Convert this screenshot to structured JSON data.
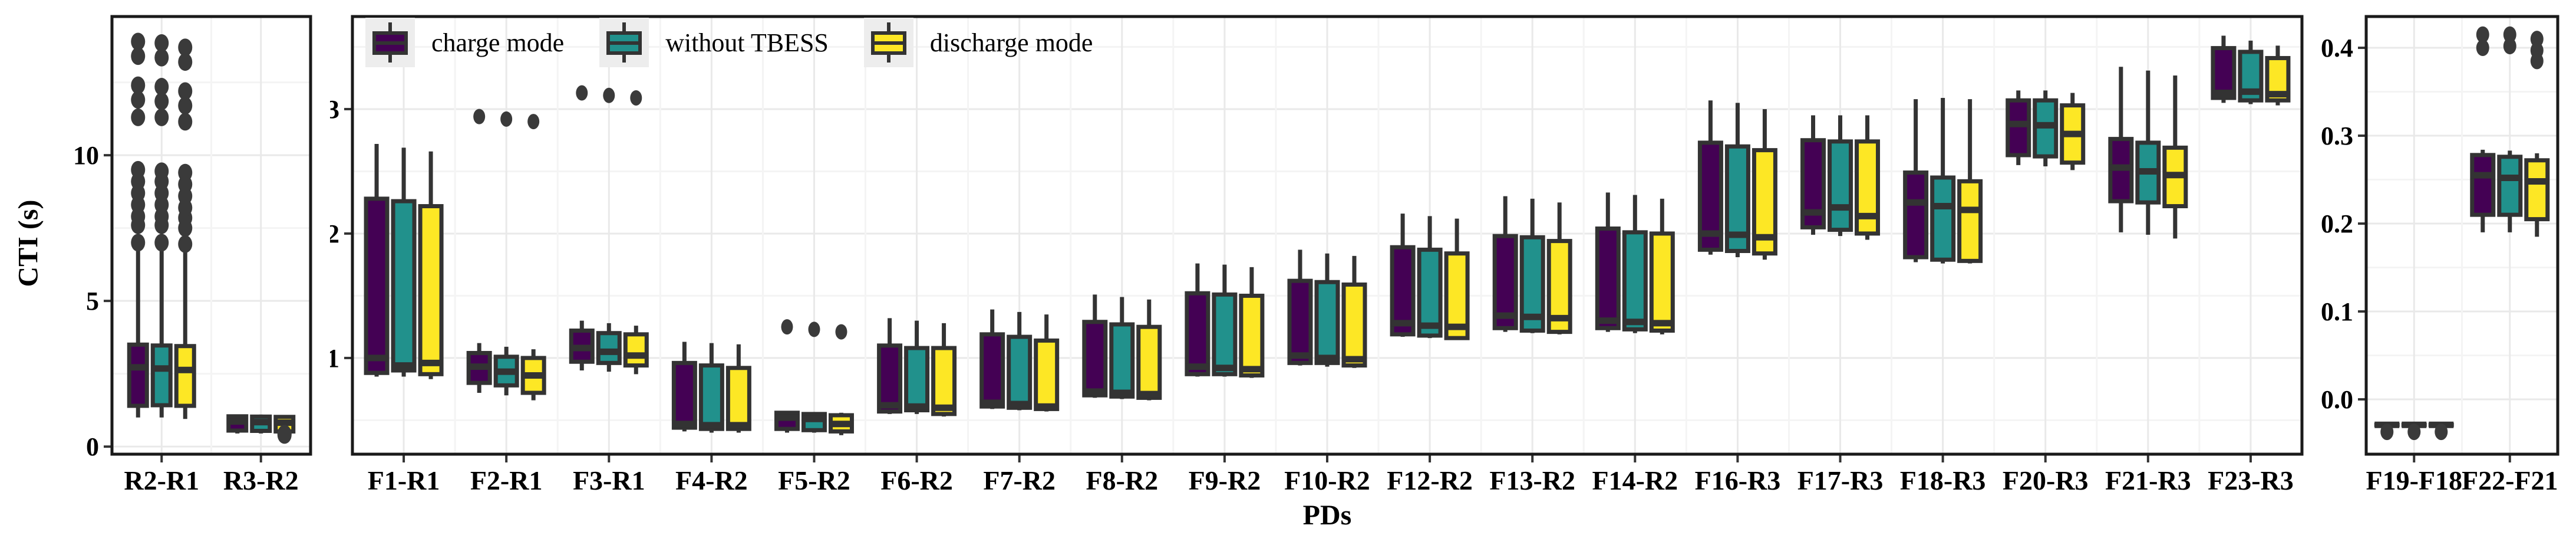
{
  "axis": {
    "x_label": "PDs",
    "y_label": "CTI (s)"
  },
  "legend": {
    "items": [
      {
        "label": "charge mode",
        "color": "#440154"
      },
      {
        "label": "without TBESS",
        "color": "#21918c"
      },
      {
        "label": "discharge mode",
        "color": "#fde725"
      }
    ]
  },
  "colors": {
    "box_outline": "#333333",
    "outlier": "#3a3a3a",
    "grid_major": "#e9e9e9",
    "grid_minor": "#f4f4f4",
    "panel_border": "#1a1a1a",
    "tick_mark": "#333333",
    "text": "#000000",
    "legend_key_bg": "#ededed",
    "background": "#ffffff"
  },
  "chart_data": [
    {
      "type": "boxplot",
      "panel": "left",
      "ylabel": "CTI (s)",
      "ylim": [
        -0.26,
        14.76
      ],
      "yticks": [
        0,
        5,
        10
      ],
      "ytick_labels": [
        "0",
        "5",
        "10"
      ],
      "yminor": [
        2.5,
        7.5,
        12.5
      ],
      "categories": [
        "R2-R1",
        "R3-R2"
      ],
      "series": [
        {
          "name": "charge mode",
          "color": "#440154",
          "boxes": [
            {
              "lo": 1.0,
              "q1": 1.4,
              "med": 2.72,
              "q3": 3.5,
              "hi": 6.9,
              "outliers": [
                7.0,
                7.6,
                7.9,
                8.3,
                8.7,
                9.1,
                9.5,
                11.3,
                11.9,
                12.4,
                13.4,
                13.9
              ]
            },
            {
              "lo": 0.45,
              "q1": 0.55,
              "med": 0.86,
              "q3": 1.04,
              "hi": 1.1,
              "outliers": []
            }
          ]
        },
        {
          "name": "without TBESS",
          "color": "#21918c",
          "boxes": [
            {
              "lo": 1.0,
              "q1": 1.42,
              "med": 2.68,
              "q3": 3.47,
              "hi": 6.88,
              "outliers": [
                7.0,
                7.6,
                7.9,
                8.3,
                8.7,
                9.1,
                9.45,
                11.3,
                11.85,
                12.35,
                13.35,
                13.85
              ]
            },
            {
              "lo": 0.45,
              "q1": 0.54,
              "med": 0.84,
              "q3": 1.03,
              "hi": 1.1,
              "outliers": []
            }
          ]
        },
        {
          "name": "discharge mode",
          "color": "#fde725",
          "boxes": [
            {
              "lo": 0.95,
              "q1": 1.4,
              "med": 2.63,
              "q3": 3.45,
              "hi": 6.85,
              "outliers": [
                6.95,
                7.5,
                7.85,
                8.2,
                8.6,
                9.0,
                9.4,
                11.15,
                11.7,
                12.2,
                13.2,
                13.7
              ]
            },
            {
              "lo": 0.43,
              "q1": 0.52,
              "med": 0.82,
              "q3": 1.02,
              "hi": 1.08,
              "outliers": [
                0.44,
                0.4
              ]
            }
          ]
        }
      ]
    },
    {
      "type": "boxplot",
      "panel": "middle",
      "ylim": [
        0.227,
        3.744
      ],
      "yticks": [
        1,
        2,
        3
      ],
      "ytick_labels": [
        "1",
        "2",
        "3"
      ],
      "yminor": [
        0.5,
        1.5,
        2.5,
        3.5
      ],
      "categories": [
        "F1-R1",
        "F2-R1",
        "F3-R1",
        "F4-R2",
        "F5-R2",
        "F6-R2",
        "F7-R2",
        "F8-R2",
        "F9-R2",
        "F10-R2",
        "F12-R2",
        "F13-R2",
        "F14-R2",
        "F16-R3",
        "F17-R3",
        "F18-R3",
        "F20-R3",
        "F21-R3",
        "F23-R3"
      ],
      "series": [
        {
          "name": "charge mode",
          "color": "#440154",
          "boxes": [
            {
              "lo": 0.85,
              "q1": 0.88,
              "med": 1.0,
              "q3": 2.28,
              "hi": 2.72,
              "outliers": []
            },
            {
              "lo": 0.72,
              "q1": 0.8,
              "med": 0.93,
              "q3": 1.04,
              "hi": 1.12,
              "outliers": [
                2.94
              ]
            },
            {
              "lo": 0.9,
              "q1": 0.97,
              "med": 1.08,
              "q3": 1.22,
              "hi": 1.3,
              "outliers": [
                3.13
              ]
            },
            {
              "lo": 0.41,
              "q1": 0.44,
              "med": 0.47,
              "q3": 0.96,
              "hi": 1.13,
              "outliers": []
            },
            {
              "lo": 0.4,
              "q1": 0.43,
              "med": 0.52,
              "q3": 0.56,
              "hi": 0.57,
              "outliers": [
                1.25
              ]
            },
            {
              "lo": 0.55,
              "q1": 0.57,
              "med": 0.62,
              "q3": 1.1,
              "hi": 1.32,
              "outliers": []
            },
            {
              "lo": 0.59,
              "q1": 0.61,
              "med": 0.64,
              "q3": 1.19,
              "hi": 1.39,
              "outliers": []
            },
            {
              "lo": 0.68,
              "q1": 0.7,
              "med": 0.73,
              "q3": 1.29,
              "hi": 1.51,
              "outliers": []
            },
            {
              "lo": 0.85,
              "q1": 0.87,
              "med": 0.93,
              "q3": 1.52,
              "hi": 1.76,
              "outliers": []
            },
            {
              "lo": 0.94,
              "q1": 0.96,
              "med": 1.02,
              "q3": 1.62,
              "hi": 1.87,
              "outliers": []
            },
            {
              "lo": 1.17,
              "q1": 1.19,
              "med": 1.28,
              "q3": 1.89,
              "hi": 2.16,
              "outliers": []
            },
            {
              "lo": 1.21,
              "q1": 1.24,
              "med": 1.34,
              "q3": 1.98,
              "hi": 2.3,
              "outliers": []
            },
            {
              "lo": 1.21,
              "q1": 1.24,
              "med": 1.3,
              "q3": 2.04,
              "hi": 2.33,
              "outliers": []
            },
            {
              "lo": 1.83,
              "q1": 1.87,
              "med": 2.0,
              "q3": 2.73,
              "hi": 3.07,
              "outliers": []
            },
            {
              "lo": 1.99,
              "q1": 2.05,
              "med": 2.17,
              "q3": 2.75,
              "hi": 2.95,
              "outliers": []
            },
            {
              "lo": 1.77,
              "q1": 1.81,
              "med": 2.25,
              "q3": 2.49,
              "hi": 3.08,
              "outliers": []
            },
            {
              "lo": 2.55,
              "q1": 2.63,
              "med": 2.88,
              "q3": 3.07,
              "hi": 3.15,
              "outliers": []
            },
            {
              "lo": 2.01,
              "q1": 2.26,
              "med": 2.53,
              "q3": 2.76,
              "hi": 3.34,
              "outliers": []
            },
            {
              "lo": 3.05,
              "q1": 3.09,
              "med": 3.13,
              "q3": 3.49,
              "hi": 3.59,
              "outliers": []
            }
          ]
        },
        {
          "name": "without TBESS",
          "color": "#21918c",
          "boxes": [
            {
              "lo": 0.85,
              "q1": 0.9,
              "med": 0.94,
              "q3": 2.26,
              "hi": 2.69,
              "outliers": []
            },
            {
              "lo": 0.7,
              "q1": 0.78,
              "med": 0.89,
              "q3": 1.01,
              "hi": 1.09,
              "outliers": [
                2.92
              ]
            },
            {
              "lo": 0.89,
              "q1": 0.96,
              "med": 1.05,
              "q3": 1.2,
              "hi": 1.28,
              "outliers": [
                3.11
              ]
            },
            {
              "lo": 0.4,
              "q1": 0.43,
              "med": 0.46,
              "q3": 0.94,
              "hi": 1.12,
              "outliers": []
            },
            {
              "lo": 0.4,
              "q1": 0.42,
              "med": 0.51,
              "q3": 0.55,
              "hi": 0.56,
              "outliers": [
                1.23
              ]
            },
            {
              "lo": 0.55,
              "q1": 0.58,
              "med": 0.61,
              "q3": 1.08,
              "hi": 1.3,
              "outliers": []
            },
            {
              "lo": 0.58,
              "q1": 0.6,
              "med": 0.63,
              "q3": 1.17,
              "hi": 1.37,
              "outliers": []
            },
            {
              "lo": 0.67,
              "q1": 0.69,
              "med": 0.72,
              "q3": 1.27,
              "hi": 1.49,
              "outliers": []
            },
            {
              "lo": 0.85,
              "q1": 0.87,
              "med": 0.92,
              "q3": 1.51,
              "hi": 1.75,
              "outliers": []
            },
            {
              "lo": 0.93,
              "q1": 0.96,
              "med": 1.0,
              "q3": 1.61,
              "hi": 1.84,
              "outliers": []
            },
            {
              "lo": 1.16,
              "q1": 1.18,
              "med": 1.26,
              "q3": 1.87,
              "hi": 2.14,
              "outliers": []
            },
            {
              "lo": 1.2,
              "q1": 1.22,
              "med": 1.33,
              "q3": 1.97,
              "hi": 2.28,
              "outliers": []
            },
            {
              "lo": 1.2,
              "q1": 1.23,
              "med": 1.29,
              "q3": 2.01,
              "hi": 2.31,
              "outliers": []
            },
            {
              "lo": 1.81,
              "q1": 1.86,
              "med": 1.99,
              "q3": 2.7,
              "hi": 3.05,
              "outliers": []
            },
            {
              "lo": 1.98,
              "q1": 2.03,
              "med": 2.21,
              "q3": 2.74,
              "hi": 2.95,
              "outliers": []
            },
            {
              "lo": 1.76,
              "q1": 1.79,
              "med": 2.22,
              "q3": 2.45,
              "hi": 3.09,
              "outliers": []
            },
            {
              "lo": 2.54,
              "q1": 2.62,
              "med": 2.87,
              "q3": 3.07,
              "hi": 3.15,
              "outliers": []
            },
            {
              "lo": 1.99,
              "q1": 2.25,
              "med": 2.5,
              "q3": 2.73,
              "hi": 3.31,
              "outliers": []
            },
            {
              "lo": 3.04,
              "q1": 3.07,
              "med": 3.14,
              "q3": 3.46,
              "hi": 3.55,
              "outliers": []
            }
          ]
        },
        {
          "name": "discharge mode",
          "color": "#fde725",
          "boxes": [
            {
              "lo": 0.83,
              "q1": 0.87,
              "med": 0.96,
              "q3": 2.22,
              "hi": 2.66,
              "outliers": []
            },
            {
              "lo": 0.66,
              "q1": 0.72,
              "med": 0.86,
              "q3": 1.0,
              "hi": 1.07,
              "outliers": [
                2.9
              ]
            },
            {
              "lo": 0.87,
              "q1": 0.94,
              "med": 1.02,
              "q3": 1.19,
              "hi": 1.26,
              "outliers": [
                3.09
              ]
            },
            {
              "lo": 0.4,
              "q1": 0.43,
              "med": 0.46,
              "q3": 0.92,
              "hi": 1.11,
              "outliers": []
            },
            {
              "lo": 0.38,
              "q1": 0.41,
              "med": 0.47,
              "q3": 0.54,
              "hi": 0.56,
              "outliers": [
                1.21
              ]
            },
            {
              "lo": 0.53,
              "q1": 0.55,
              "med": 0.6,
              "q3": 1.08,
              "hi": 1.28,
              "outliers": []
            },
            {
              "lo": 0.57,
              "q1": 0.59,
              "med": 0.61,
              "q3": 1.14,
              "hi": 1.35,
              "outliers": []
            },
            {
              "lo": 0.66,
              "q1": 0.68,
              "med": 0.71,
              "q3": 1.25,
              "hi": 1.47,
              "outliers": []
            },
            {
              "lo": 0.84,
              "q1": 0.86,
              "med": 0.91,
              "q3": 1.5,
              "hi": 1.73,
              "outliers": []
            },
            {
              "lo": 0.92,
              "q1": 0.94,
              "med": 0.99,
              "q3": 1.59,
              "hi": 1.82,
              "outliers": []
            },
            {
              "lo": 1.15,
              "q1": 1.16,
              "med": 1.25,
              "q3": 1.84,
              "hi": 2.12,
              "outliers": []
            },
            {
              "lo": 1.19,
              "q1": 1.21,
              "med": 1.32,
              "q3": 1.94,
              "hi": 2.25,
              "outliers": []
            },
            {
              "lo": 1.19,
              "q1": 1.22,
              "med": 1.28,
              "q3": 2.0,
              "hi": 2.28,
              "outliers": []
            },
            {
              "lo": 1.79,
              "q1": 1.84,
              "med": 1.97,
              "q3": 2.67,
              "hi": 3.0,
              "outliers": []
            },
            {
              "lo": 1.95,
              "q1": 2.0,
              "med": 2.14,
              "q3": 2.74,
              "hi": 2.95,
              "outliers": []
            },
            {
              "lo": 1.76,
              "q1": 1.78,
              "med": 2.19,
              "q3": 2.42,
              "hi": 3.08,
              "outliers": []
            },
            {
              "lo": 2.51,
              "q1": 2.57,
              "med": 2.8,
              "q3": 3.03,
              "hi": 3.13,
              "outliers": []
            },
            {
              "lo": 1.96,
              "q1": 2.22,
              "med": 2.47,
              "q3": 2.69,
              "hi": 3.27,
              "outliers": []
            },
            {
              "lo": 3.03,
              "q1": 3.07,
              "med": 3.12,
              "q3": 3.41,
              "hi": 3.51,
              "outliers": []
            }
          ]
        }
      ]
    },
    {
      "type": "boxplot",
      "panel": "right",
      "ylim": [
        -0.0624,
        0.4356
      ],
      "yticks": [
        0.0,
        0.1,
        0.2,
        0.3,
        0.4
      ],
      "ytick_labels": [
        "0.0",
        "0.1",
        "0.2",
        "0.3",
        "0.4"
      ],
      "yminor": [
        0.05,
        0.15,
        0.25,
        0.35
      ],
      "categories": [
        "F19-F18",
        "F22-F21"
      ],
      "series": [
        {
          "name": "charge mode",
          "color": "#440154",
          "boxes": [
            {
              "lo": -0.029,
              "q1": -0.029,
              "med": -0.029,
              "q3": -0.029,
              "hi": -0.029,
              "outliers": [
                -0.037
              ]
            },
            {
              "lo": 0.19,
              "q1": 0.21,
              "med": 0.255,
              "q3": 0.278,
              "hi": 0.284,
              "outliers": [
                0.415,
                0.4
              ]
            }
          ]
        },
        {
          "name": "without TBESS",
          "color": "#21918c",
          "boxes": [
            {
              "lo": -0.029,
              "q1": -0.029,
              "med": -0.029,
              "q3": -0.029,
              "hi": -0.029,
              "outliers": [
                -0.037
              ]
            },
            {
              "lo": 0.19,
              "q1": 0.21,
              "med": 0.252,
              "q3": 0.276,
              "hi": 0.283,
              "outliers": [
                0.415,
                0.402
              ]
            }
          ]
        },
        {
          "name": "discharge mode",
          "color": "#fde725",
          "boxes": [
            {
              "lo": -0.029,
              "q1": -0.029,
              "med": -0.029,
              "q3": -0.029,
              "hi": -0.029,
              "outliers": [
                -0.037
              ]
            },
            {
              "lo": 0.185,
              "q1": 0.205,
              "med": 0.248,
              "q3": 0.272,
              "hi": 0.28,
              "outliers": [
                0.41,
                0.397,
                0.385
              ]
            }
          ]
        }
      ]
    }
  ]
}
